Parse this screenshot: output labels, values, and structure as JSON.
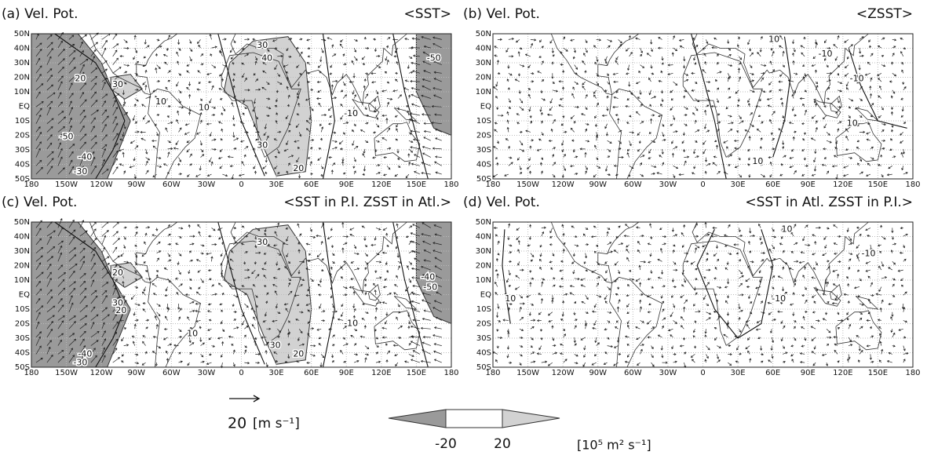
{
  "axes": {
    "x_ticks": [
      "180",
      "150W",
      "120W",
      "90W",
      "60W",
      "30W",
      "0",
      "30E",
      "60E",
      "90E",
      "120E",
      "150E",
      "180"
    ],
    "y_ticks": [
      "50N",
      "40N",
      "30N",
      "20N",
      "10N",
      "EQ",
      "10S",
      "20S",
      "30S",
      "40S",
      "50S"
    ]
  },
  "panels": [
    {
      "label": "(a) Vel. Pot.",
      "experiment": "<SST>",
      "contour_labels": [
        30,
        40,
        30,
        20,
        10,
        10,
        -10,
        -50,
        -50,
        -40,
        -30,
        30,
        20
      ]
    },
    {
      "label": "(b) Vel. Pot.",
      "experiment": "<ZSST>",
      "contour_labels": [
        -10,
        10,
        -10,
        10,
        10
      ]
    },
    {
      "label": "(c) Vel. Pot.",
      "experiment": "<SST in P.I. ZSST in Atl.>",
      "contour_labels": [
        20,
        30,
        30,
        20,
        10,
        -10,
        -40,
        -50,
        -40,
        -30,
        30,
        20
      ]
    },
    {
      "label": "(d) Vel. Pot.",
      "experiment": "<SST in Atl. ZSST in P.I.>",
      "contour_labels": [
        10,
        -10,
        10,
        -10
      ]
    }
  ],
  "vector_legend": {
    "value": 20,
    "unit": "[m s⁻¹]"
  },
  "color_legend": {
    "levels": [
      -20,
      20
    ],
    "unit": "[10⁵ m² s⁻¹]"
  }
}
